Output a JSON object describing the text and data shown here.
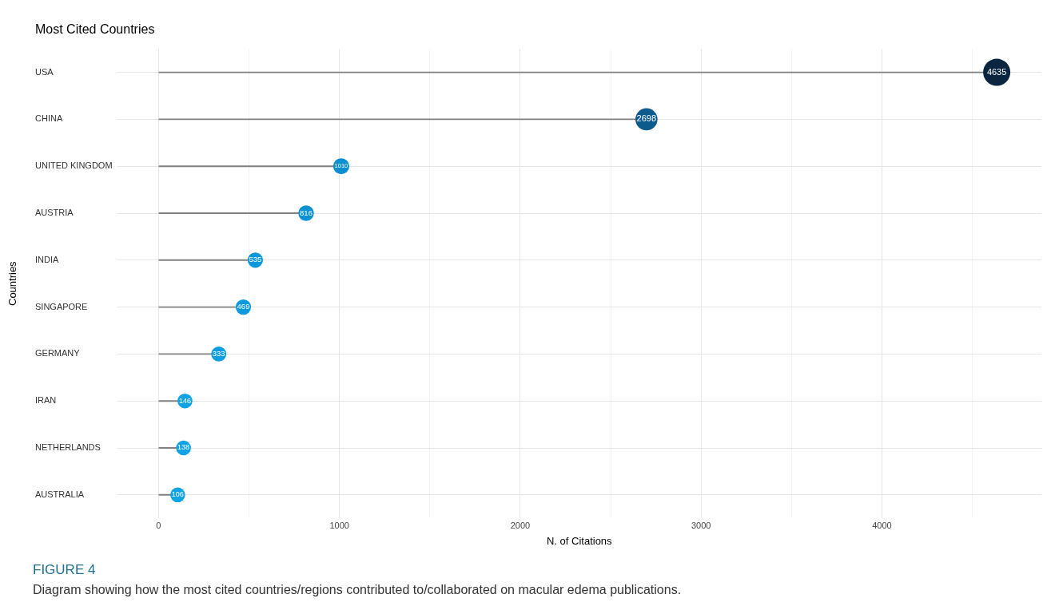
{
  "chart_data": {
    "type": "lollipop",
    "title": "Most Cited Countries",
    "xlabel": "N. of Citations",
    "ylabel": "Countries",
    "orientation": "horizontal",
    "categories": [
      "USA",
      "CHINA",
      "UNITED KINGDOM",
      "AUSTRIA",
      "INDIA",
      "SINGAPORE",
      "GERMANY",
      "IRAN",
      "NETHERLANDS",
      "AUSTRALIA"
    ],
    "values": [
      4635,
      2698,
      1010,
      816,
      535,
      469,
      333,
      146,
      138,
      106
    ],
    "sizes": [
      1,
      0.66,
      0.35,
      0.33,
      0.32,
      0.32,
      0.31,
      0.3,
      0.3,
      0.3
    ],
    "colors": [
      "#0a2540",
      "#0d5a8c",
      "#0b8fd0",
      "#0b92d3",
      "#0c98da",
      "#0c9add",
      "#0d9edf",
      "#0fa3e4",
      "#0fa3e4",
      "#10a4e5"
    ],
    "xlim": [
      -229,
      4882
    ],
    "xticks": [
      0,
      {
        "value": 500,
        "label": null
      },
      1000,
      {
        "value": 1500,
        "label": null
      },
      2000,
      {
        "value": 2500,
        "label": null
      },
      3000,
      {
        "value": 3500,
        "label": null
      },
      4000,
      {
        "value": 4500,
        "label": null
      }
    ],
    "grid": true,
    "data_labels": true,
    "legend": false,
    "annotations": [
      "FIGURE 4",
      "Diagram showing how the most cited countries/regions contributed to/collaborated on macular edema publications."
    ]
  }
}
